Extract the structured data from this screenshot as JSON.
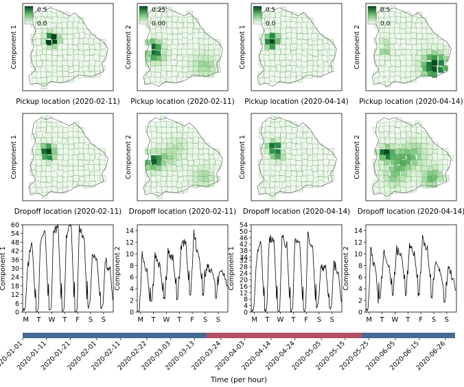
{
  "colors": {
    "map_fill_low": "#f3faef",
    "map_fill_high": "#00441b",
    "map_border": "#2e7d32",
    "line": "#000000",
    "band_blue": "#3e6690",
    "band_red": "#b04a60"
  },
  "chart_data": [
    {
      "type": "heatmap",
      "panel": "map-1",
      "row": 1,
      "ylabel": "Component 1",
      "xlabel": "Pickup location (2020-02-11)",
      "colorbar": {
        "min": 0.0,
        "max": 0.5,
        "ticks": [
          "0.5",
          "0.0"
        ]
      },
      "hotspots": [
        {
          "cx": 0.32,
          "cy": 0.4,
          "r": 0.07,
          "v": 1.0
        },
        {
          "cx": 0.3,
          "cy": 0.44,
          "r": 0.06,
          "v": 0.6
        }
      ]
    },
    {
      "type": "heatmap",
      "panel": "map-2",
      "row": 1,
      "ylabel": "Component 2",
      "xlabel": "Pickup location (2020-02-11)",
      "colorbar": {
        "min": 0.0,
        "max": 0.25,
        "ticks": [
          "0.25",
          "0.00"
        ]
      },
      "hotspots": [
        {
          "cx": 0.18,
          "cy": 0.58,
          "r": 0.1,
          "v": 0.75
        },
        {
          "cx": 0.15,
          "cy": 0.47,
          "r": 0.07,
          "v": 0.55
        },
        {
          "cx": 0.76,
          "cy": 0.73,
          "r": 0.14,
          "v": 0.35
        }
      ]
    },
    {
      "type": "heatmap",
      "panel": "map-3",
      "row": 1,
      "ylabel": "Component 1",
      "xlabel": "Pickup location (2020-04-14)",
      "colorbar": {
        "min": 0.0,
        "max": 0.5,
        "ticks": [
          "0.5",
          "0.0"
        ]
      },
      "hotspots": [
        {
          "cx": 0.22,
          "cy": 0.4,
          "r": 0.06,
          "v": 1.0
        },
        {
          "cx": 0.2,
          "cy": 0.46,
          "r": 0.06,
          "v": 0.7
        }
      ]
    },
    {
      "type": "heatmap",
      "panel": "map-4",
      "row": 1,
      "ylabel": "Component 2",
      "xlabel": "Pickup location (2020-04-14)",
      "colorbar": {
        "min": 0.0,
        "max": 0.5,
        "ticks": [
          "0.5",
          "0.0"
        ]
      },
      "hotspots": [
        {
          "cx": 0.78,
          "cy": 0.73,
          "r": 0.14,
          "v": 1.0
        },
        {
          "cx": 0.2,
          "cy": 0.55,
          "r": 0.05,
          "v": 0.5
        },
        {
          "cx": 0.19,
          "cy": 0.42,
          "r": 0.04,
          "v": 0.35
        }
      ]
    },
    {
      "type": "heatmap",
      "panel": "map-5",
      "row": 2,
      "ylabel": "Component 1",
      "xlabel": "Dropoff location (2020-02-11)",
      "hotspots": [
        {
          "cx": 0.26,
          "cy": 0.42,
          "r": 0.07,
          "v": 1.0
        },
        {
          "cx": 0.28,
          "cy": 0.5,
          "r": 0.06,
          "v": 0.55
        }
      ]
    },
    {
      "type": "heatmap",
      "panel": "map-6",
      "row": 2,
      "ylabel": "Component 2",
      "xlabel": "Dropoff location (2020-02-11)",
      "hotspots": [
        {
          "cx": 0.16,
          "cy": 0.55,
          "r": 0.1,
          "v": 0.85
        },
        {
          "cx": 0.35,
          "cy": 0.5,
          "r": 0.12,
          "v": 0.3
        },
        {
          "cx": 0.75,
          "cy": 0.74,
          "r": 0.13,
          "v": 0.3
        },
        {
          "cx": 0.45,
          "cy": 0.35,
          "r": 0.1,
          "v": 0.2
        }
      ]
    },
    {
      "type": "heatmap",
      "panel": "map-7",
      "row": 2,
      "ylabel": "Component 1",
      "xlabel": "Dropoff location (2020-04-14)",
      "hotspots": [
        {
          "cx": 0.24,
          "cy": 0.38,
          "r": 0.07,
          "v": 1.0
        },
        {
          "cx": 0.28,
          "cy": 0.48,
          "r": 0.07,
          "v": 0.5
        }
      ]
    },
    {
      "type": "heatmap",
      "panel": "map-8",
      "row": 2,
      "ylabel": "Component 2",
      "xlabel": "Dropoff location (2020-04-14)",
      "hotspots": [
        {
          "cx": 0.2,
          "cy": 0.45,
          "r": 0.08,
          "v": 0.9
        },
        {
          "cx": 0.38,
          "cy": 0.55,
          "r": 0.14,
          "v": 0.5
        },
        {
          "cx": 0.55,
          "cy": 0.45,
          "r": 0.14,
          "v": 0.35
        },
        {
          "cx": 0.75,
          "cy": 0.75,
          "r": 0.12,
          "v": 0.5
        },
        {
          "cx": 0.3,
          "cy": 0.75,
          "r": 0.12,
          "v": 0.35
        }
      ]
    },
    {
      "type": "line",
      "panel": "ts-1",
      "ylabel": "Component 1",
      "ylim": [
        0,
        60
      ],
      "yticks": [
        "0",
        "6",
        "12",
        "18",
        "24",
        "30",
        "36",
        "42",
        "48",
        "54",
        "60"
      ],
      "xtick_labels": [
        "M",
        "T",
        "W",
        "T",
        "F",
        "S",
        "S"
      ],
      "day_peaks": [
        [
          30,
          46
        ],
        [
          51,
          55
        ],
        [
          54,
          58
        ],
        [
          52,
          60
        ],
        [
          58,
          52
        ],
        [
          38,
          36
        ],
        [
          36,
          30
        ]
      ],
      "day_base": [
        2,
        1,
        1,
        1,
        1,
        6,
        4
      ]
    },
    {
      "type": "line",
      "panel": "ts-2",
      "ylabel": "Component 2",
      "ylim": [
        0,
        15
      ],
      "yticks": [
        "0",
        "2",
        "4",
        "6",
        "8",
        "10",
        "12",
        "14"
      ],
      "xtick_labels": [
        "M",
        "T",
        "W",
        "T",
        "F",
        "S",
        "S"
      ],
      "day_peaks": [
        [
          10.5,
          7.5
        ],
        [
          10.5,
          8
        ],
        [
          10.5,
          9.5
        ],
        [
          11,
          12
        ],
        [
          14,
          10
        ],
        [
          8,
          7
        ],
        [
          7.5,
          6
        ]
      ],
      "day_base": [
        0.5,
        3,
        4,
        4,
        5,
        5,
        4
      ]
    },
    {
      "type": "line",
      "panel": "ts-3",
      "ylabel": "Component 1",
      "ylim": [
        0,
        54
      ],
      "yticks": [
        "0",
        "4",
        "8",
        "12",
        "16",
        "20",
        "24",
        "28",
        "32",
        "34",
        "38",
        "42",
        "46",
        "50",
        "54"
      ],
      "ytick_values": [
        0,
        4,
        8,
        12,
        16,
        20,
        24,
        28,
        32,
        34,
        38,
        42,
        46,
        50,
        54
      ],
      "xtick_labels": [
        "M",
        "T",
        "W",
        "T",
        "F",
        "S",
        "S"
      ],
      "day_peaks": [
        [
          28,
          44
        ],
        [
          44,
          46
        ],
        [
          48,
          42
        ],
        [
          47,
          44
        ],
        [
          48,
          40
        ],
        [
          28,
          28
        ],
        [
          31,
          24
        ]
      ],
      "day_base": [
        2,
        1,
        1,
        1,
        1,
        6,
        3
      ]
    },
    {
      "type": "line",
      "panel": "ts-4",
      "ylabel": "Component 2",
      "ylim": [
        0,
        15
      ],
      "yticks": [
        "0",
        "2",
        "4",
        "6",
        "8",
        "10",
        "12",
        "14"
      ],
      "xtick_labels": [
        "M",
        "T",
        "W",
        "T",
        "F",
        "S",
        "S"
      ],
      "day_peaks": [
        [
          11,
          8
        ],
        [
          10.5,
          8.5
        ],
        [
          11,
          10
        ],
        [
          12,
          10
        ],
        [
          13,
          11
        ],
        [
          9,
          7
        ],
        [
          8,
          6
        ]
      ],
      "day_base": [
        0.5,
        4,
        5,
        5,
        5,
        4,
        3
      ]
    },
    {
      "type": "timeline",
      "panel": "timeline",
      "xlabel": "Time (per hour)",
      "ticks": [
        "2020-01-01",
        "2020-01-11",
        "2020-01-21",
        "2020-02-01",
        "2020-02-11",
        "2020-02-22",
        "2020-03-03",
        "2020-03-13",
        "2020-03-24",
        "2020-04-03",
        "2020-04-14",
        "2020-04-24",
        "2020-05-05",
        "2020-05-15",
        "2020-05-25",
        "2020-06-05",
        "2020-06-15",
        "2020-06-26"
      ],
      "segments": [
        {
          "from": "2020-01-01",
          "to": "2020-03-18",
          "color": "#3e6690"
        },
        {
          "from": "2020-03-18",
          "to": "2020-05-22",
          "color": "#b04a60"
        },
        {
          "from": "2020-05-22",
          "to": "2020-06-30",
          "color": "#3e6690"
        }
      ]
    }
  ]
}
